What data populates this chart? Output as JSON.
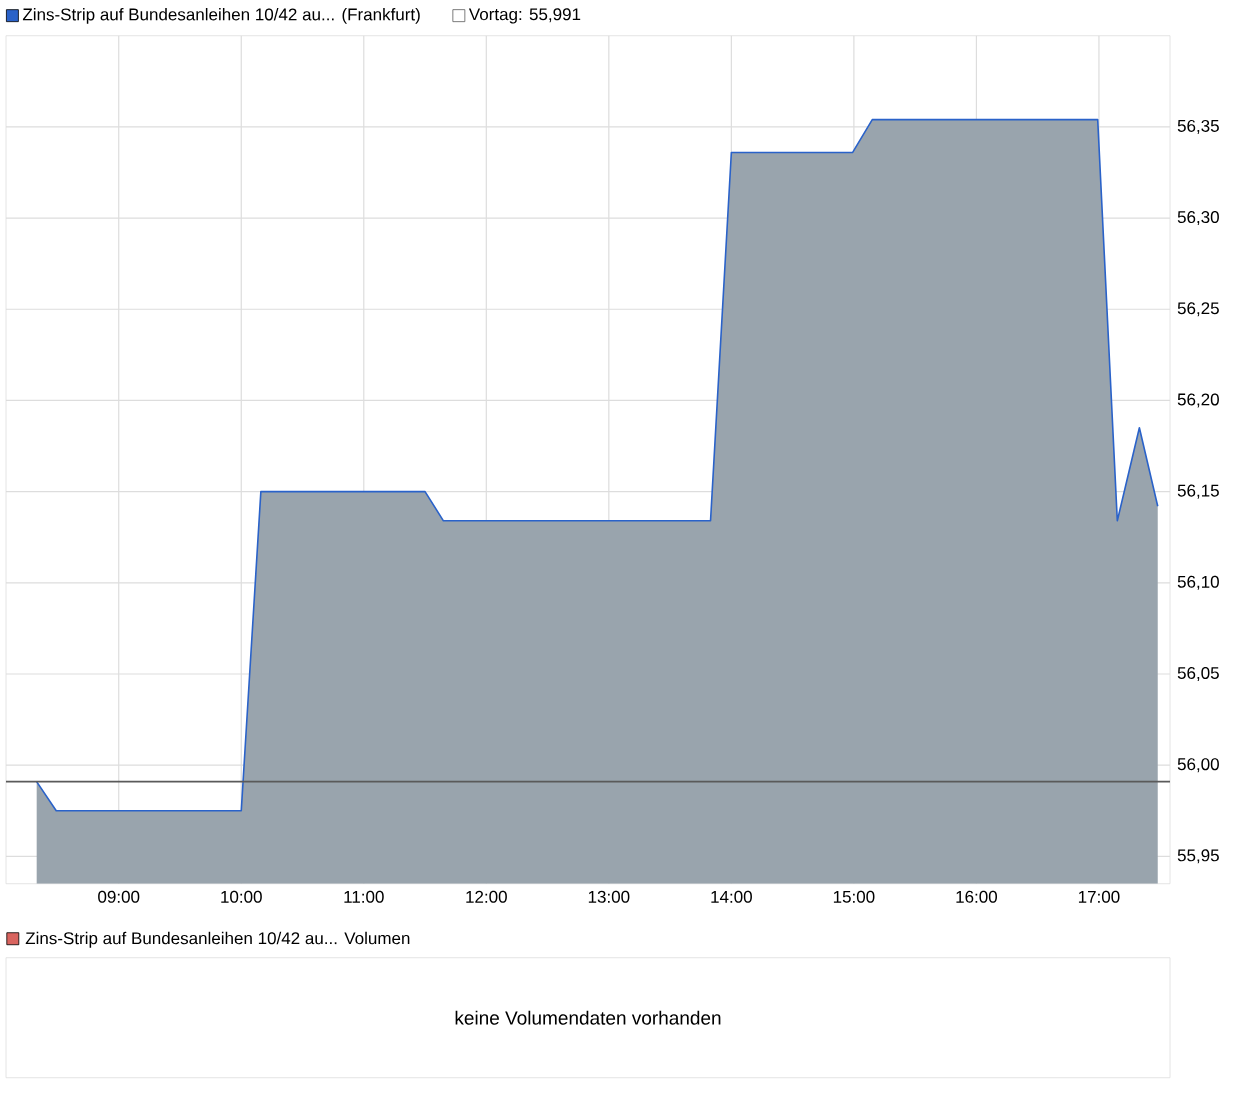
{
  "chart_data": [
    {
      "type": "area",
      "series": [
        {
          "name": "Zins-Strip auf Bundesanleihen 10/42 au... (Frankfurt)",
          "color": "#2a62c9",
          "x": [
            8.33,
            8.49,
            10.0,
            10.16,
            11.5,
            11.65,
            13.83,
            14.0,
            14.99,
            15.15,
            16.99,
            17.15,
            17.33,
            17.48
          ],
          "values": [
            55.991,
            55.975,
            55.975,
            56.15,
            56.15,
            56.134,
            56.134,
            56.336,
            56.336,
            56.354,
            56.354,
            56.134,
            56.185,
            56.142
          ]
        }
      ],
      "xlim": [
        8.08,
        17.58
      ],
      "xticks": [
        {
          "value": 9,
          "label": "09:00"
        },
        {
          "value": 10,
          "label": "10:00"
        },
        {
          "value": 11,
          "label": "11:00"
        },
        {
          "value": 12,
          "label": "12:00"
        },
        {
          "value": 13,
          "label": "13:00"
        },
        {
          "value": 14,
          "label": "14:00"
        },
        {
          "value": 15,
          "label": "15:00"
        },
        {
          "value": 16,
          "label": "16:00"
        },
        {
          "value": 17,
          "label": "17:00"
        }
      ],
      "ylim": [
        55.935,
        56.4
      ],
      "yticks": [
        {
          "value": 55.95,
          "label": "55,95"
        },
        {
          "value": 56.0,
          "label": "56,00"
        },
        {
          "value": 56.05,
          "label": "56,05"
        },
        {
          "value": 56.1,
          "label": "56,10"
        },
        {
          "value": 56.15,
          "label": "56,15"
        },
        {
          "value": 56.2,
          "label": "56,20"
        },
        {
          "value": 56.25,
          "label": "56,25"
        },
        {
          "value": 56.3,
          "label": "56,30"
        },
        {
          "value": 56.35,
          "label": "56,35"
        }
      ],
      "ref_lines": [
        {
          "axis": "y",
          "value": 55.991,
          "label": "Vortag: 55,991",
          "color": "#5a5a5a"
        }
      ],
      "grid": true,
      "legend": "top left"
    },
    {
      "type": "other",
      "title": "Zins-Strip auf Bundesanleihen 10/42 au... Volumen",
      "color": "#d9645f",
      "annotations": [
        "keine Volumendaten vorhanden"
      ]
    }
  ]
}
